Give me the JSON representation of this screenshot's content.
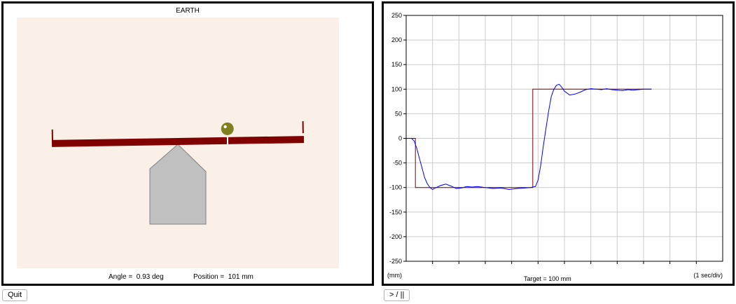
{
  "simulation": {
    "title": "EARTH",
    "angle_readout": "Angle =  0.93 deg",
    "position_readout": "Position =  101 mm",
    "background_color": "#faf0e8",
    "beam_color": "#800000",
    "ball_color": "#808020",
    "base_color": "#c0c0c0"
  },
  "plot": {
    "units_label": "(mm)",
    "target_label": "Target = 100 mm",
    "time_scale_label": "(1 sec/div)"
  },
  "chart_data": {
    "type": "line",
    "ylabel": "(mm)",
    "xlabel": "(1 sec/div)",
    "ylim": [
      -250,
      250
    ],
    "yticks": [
      250,
      200,
      150,
      100,
      50,
      0,
      -50,
      -100,
      -150,
      -200,
      -250
    ],
    "xlim": [
      0,
      12
    ],
    "grid": true,
    "series": [
      {
        "color": "#800000",
        "x": [
          0,
          0.35,
          0.35,
          4.8,
          4.8,
          9.3
        ],
        "y": [
          0,
          0,
          -100,
          -100,
          100,
          100
        ]
      },
      {
        "color": "#0000ff",
        "x": [
          0,
          0.2,
          0.3,
          0.4,
          0.5,
          0.6,
          0.7,
          0.8,
          0.9,
          1.0,
          1.1,
          1.3,
          1.5,
          1.7,
          1.9,
          2.1,
          2.3,
          2.5,
          2.7,
          3.0,
          3.3,
          3.6,
          3.9,
          4.2,
          4.5,
          4.7,
          4.9,
          5.0,
          5.1,
          5.2,
          5.3,
          5.4,
          5.5,
          5.6,
          5.7,
          5.8,
          5.9,
          6.0,
          6.2,
          6.4,
          6.6,
          6.8,
          7.0,
          7.2,
          7.4,
          7.6,
          7.8,
          8.0,
          8.2,
          8.4,
          8.6,
          8.8,
          9.0,
          9.3
        ],
        "y": [
          0,
          0,
          -5,
          -20,
          -40,
          -60,
          -80,
          -92,
          -100,
          -104,
          -101,
          -96,
          -93,
          -97,
          -102,
          -101,
          -98,
          -99,
          -98,
          -100,
          -102,
          -101,
          -104,
          -102,
          -101,
          -100,
          -98,
          -85,
          -55,
          -15,
          20,
          55,
          85,
          100,
          108,
          110,
          104,
          96,
          88,
          90,
          94,
          99,
          101,
          100,
          99,
          101,
          99,
          98,
          97,
          99,
          98,
          99,
          100,
          100
        ]
      }
    ]
  },
  "buttons": {
    "quit_label": "Quit",
    "play_pause_label": "> / ||"
  }
}
